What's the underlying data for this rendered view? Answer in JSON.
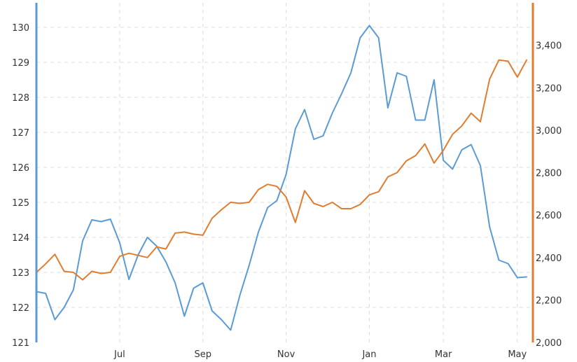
{
  "chart_data": {
    "type": "line",
    "title": "",
    "xlabel": "",
    "ylabel": "",
    "legend": "none",
    "grid": true,
    "x_tick_labels": [
      "Jul",
      "Sep",
      "Nov",
      "Jan",
      "Mar",
      "May"
    ],
    "x_tick_index": [
      9,
      18,
      27,
      36,
      44,
      52
    ],
    "y_left": {
      "range": [
        121,
        130.7
      ],
      "ticks": [
        121,
        122,
        123,
        124,
        125,
        126,
        127,
        128,
        129,
        130
      ],
      "tick_labels": [
        "121",
        "122",
        "123",
        "124",
        "125",
        "126",
        "127",
        "128",
        "129",
        "130"
      ],
      "color": "#5b9bd5"
    },
    "y_right": {
      "range": [
        2000,
        3600
      ],
      "ticks": [
        2000,
        2200,
        2400,
        2600,
        2800,
        3000,
        3200,
        3400
      ],
      "tick_labels": [
        "2,000",
        "2,200",
        "2,400",
        "2,600",
        "2,800",
        "3,000",
        "3,200",
        "3,400"
      ],
      "color": "#e07d2f"
    },
    "series": [
      {
        "axis": "left",
        "color": "#5b9bd5",
        "values": [
          122.45,
          122.4,
          121.65,
          122.0,
          122.5,
          123.9,
          124.5,
          124.45,
          124.52,
          123.85,
          122.8,
          123.5,
          124.0,
          123.75,
          123.3,
          122.7,
          121.75,
          122.55,
          122.7,
          121.9,
          121.65,
          121.35,
          122.35,
          123.2,
          124.15,
          124.85,
          125.05,
          125.8,
          127.1,
          127.65,
          126.8,
          126.9,
          127.55,
          128.1,
          128.7,
          129.7,
          130.05,
          129.7,
          127.7,
          128.7,
          128.6,
          127.35,
          127.35,
          128.5,
          126.2,
          125.95,
          126.5,
          126.65,
          126.05,
          124.3,
          123.35,
          123.25,
          122.85,
          122.87
        ]
      },
      {
        "axis": "right",
        "color": "#e07d2f",
        "values": [
          2330,
          2370,
          2415,
          2335,
          2330,
          2295,
          2335,
          2325,
          2330,
          2405,
          2420,
          2410,
          2400,
          2450,
          2440,
          2515,
          2520,
          2510,
          2505,
          2585,
          2625,
          2660,
          2655,
          2660,
          2720,
          2745,
          2735,
          2685,
          2565,
          2715,
          2655,
          2640,
          2660,
          2630,
          2630,
          2650,
          2695,
          2710,
          2780,
          2800,
          2855,
          2880,
          2935,
          2845,
          2905,
          2980,
          3020,
          3080,
          3040,
          3240,
          3330,
          3325,
          3250,
          3330
        ]
      }
    ]
  }
}
